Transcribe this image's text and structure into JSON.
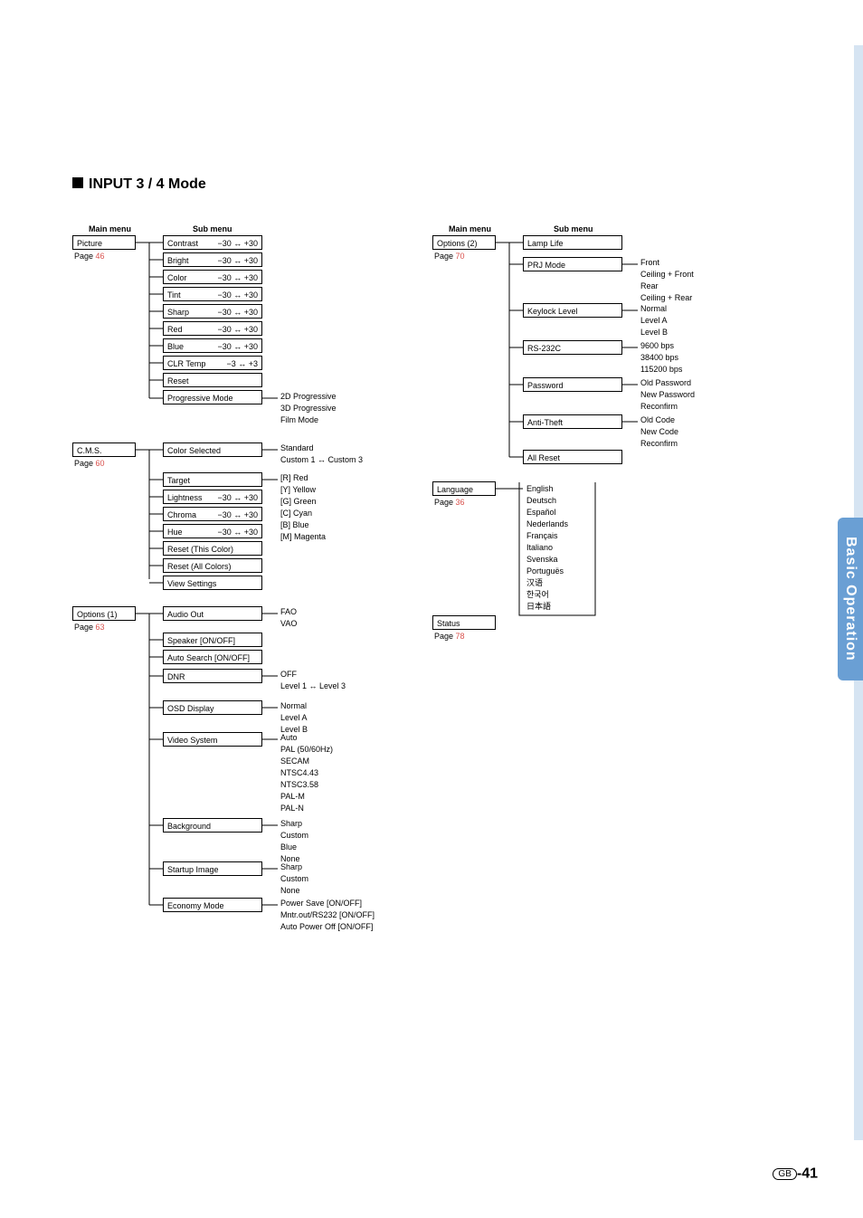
{
  "heading": "INPUT 3 / 4 Mode",
  "section_tab": "Basic Operation",
  "colors": {
    "link": "#d9534f",
    "tab_bg": "#6a9fd4",
    "stripe": "#d6e4f2"
  },
  "col_headers": {
    "left_main": "Main menu",
    "left_sub": "Sub menu",
    "right_main": "Main menu",
    "right_sub": "Sub menu"
  },
  "picture": {
    "label": "Picture",
    "page": "46",
    "items": [
      {
        "k": "Contrast",
        "v": "−30 ↔ +30"
      },
      {
        "k": "Bright",
        "v": "−30 ↔ +30"
      },
      {
        "k": "Color",
        "v": "−30 ↔ +30"
      },
      {
        "k": "Tint",
        "v": "−30 ↔ +30"
      },
      {
        "k": "Sharp",
        "v": "−30 ↔ +30"
      },
      {
        "k": "Red",
        "v": "−30 ↔ +30"
      },
      {
        "k": "Blue",
        "v": "−30 ↔ +30"
      },
      {
        "k": "CLR Temp",
        "v": "−3 ↔ +3"
      },
      {
        "k": "Reset",
        "v": ""
      },
      {
        "k": "Progressive Mode",
        "v": ""
      }
    ],
    "progressive_vals": "2D Progressive\n3D Progressive\nFilm Mode"
  },
  "cms": {
    "label": "C.M.S.",
    "page": "60",
    "items": [
      {
        "k": "Color Selected",
        "v": ""
      },
      {
        "k": "Target",
        "v": ""
      },
      {
        "k": "Lightness",
        "v": "−30 ↔ +30"
      },
      {
        "k": "Chroma",
        "v": "−30 ↔ +30"
      },
      {
        "k": "Hue",
        "v": "−30 ↔ +30"
      },
      {
        "k": "Reset (This Color)",
        "v": ""
      },
      {
        "k": "Reset (All Colors)",
        "v": ""
      },
      {
        "k": "View Settings",
        "v": ""
      }
    ],
    "color_selected_vals": "Standard\nCustom 1 ↔ Custom 3",
    "target_vals": "[R] Red\n[Y] Yellow\n[G] Green\n[C] Cyan\n[B] Blue\n[M] Magenta"
  },
  "options1": {
    "label": "Options (1)",
    "page": "63",
    "items": [
      {
        "k": "Audio Out",
        "vals": "FAO\nVAO"
      },
      {
        "k": "Speaker [ON/OFF]",
        "vals": ""
      },
      {
        "k": "Auto Search [ON/OFF]",
        "vals": ""
      },
      {
        "k": "DNR",
        "vals": "OFF\nLevel 1 ↔ Level 3"
      },
      {
        "k": "OSD Display",
        "vals": "Normal\nLevel A\nLevel B"
      },
      {
        "k": "Video System",
        "vals": "Auto\nPAL (50/60Hz)\nSECAM\nNTSC4.43\nNTSC3.58\nPAL-M\nPAL-N"
      },
      {
        "k": "Background",
        "vals": "Sharp\nCustom\nBlue\nNone"
      },
      {
        "k": "Startup Image",
        "vals": "Sharp\nCustom\nNone"
      },
      {
        "k": "Economy Mode",
        "vals": "Power Save [ON/OFF]\nMntr.out/RS232 [ON/OFF]\nAuto Power Off [ON/OFF]"
      }
    ]
  },
  "options2": {
    "label": "Options (2)",
    "page": "70",
    "items": [
      {
        "k": "Lamp Life",
        "vals": ""
      },
      {
        "k": "PRJ Mode",
        "vals": "Front\nCeiling + Front\nRear\nCeiling + Rear"
      },
      {
        "k": "Keylock Level",
        "vals": "Normal\nLevel A\nLevel B"
      },
      {
        "k": "RS-232C",
        "vals": "9600 bps\n38400 bps\n115200 bps"
      },
      {
        "k": "Password",
        "vals": "Old Password\nNew Password\nReconfirm"
      },
      {
        "k": "Anti-Theft",
        "vals": "Old Code\nNew Code\nReconfirm"
      },
      {
        "k": "All Reset",
        "vals": ""
      }
    ]
  },
  "language": {
    "label": "Language",
    "page": "36",
    "vals": "English\nDeutsch\nEspañol\nNederlands\nFrançais\nItaliano\nSvenska\nPortuguës\n汉语\n한국어\n日本語"
  },
  "status": {
    "label": "Status",
    "page": "78"
  },
  "footer": {
    "region": "GB",
    "page": "-41"
  }
}
